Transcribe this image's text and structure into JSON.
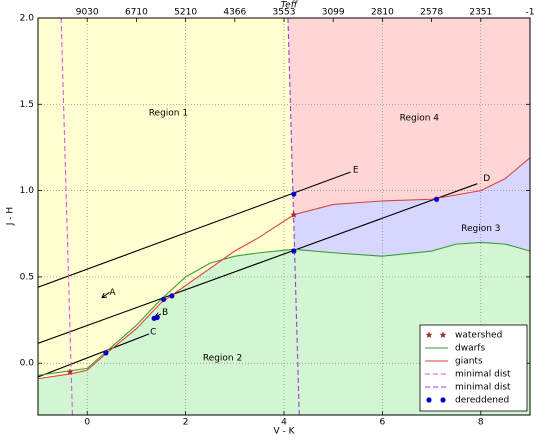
{
  "chart_data": {
    "type": "line",
    "xlabel": "V - K",
    "ylabel": "J - H",
    "x2label": "Teff",
    "xlim": [
      -1,
      9
    ],
    "ylim": [
      -0.3,
      2.0
    ],
    "xticks": [
      0,
      2,
      4,
      6,
      8
    ],
    "yticks": [
      {
        "value": 0,
        "label": "0.0"
      },
      0.5,
      {
        "value": 1,
        "label": "1.0"
      },
      1.5,
      {
        "value": 2,
        "label": "2.0"
      }
    ],
    "x2ticks": [
      {
        "value": 0,
        "label": "9030"
      },
      {
        "value": 1,
        "label": "6710"
      },
      {
        "value": 2,
        "label": "5210"
      },
      {
        "value": 3,
        "label": "4366"
      },
      {
        "value": 4,
        "label": "3553"
      },
      {
        "value": 5,
        "label": "3099"
      },
      {
        "value": 6,
        "label": "2810"
      },
      {
        "value": 7,
        "label": "2578"
      },
      {
        "value": 8,
        "label": "2351"
      },
      {
        "value": 9,
        "label": "-1"
      }
    ],
    "grid": true,
    "legend": "lower right",
    "region_colors": {
      "left": "#ffffd2",
      "right_upper": "#ffd6d6",
      "right_middle": "#d6d6ff",
      "lower": "#d2f5d2"
    },
    "series": [
      {
        "name": "watershed",
        "kind": "scatter",
        "marker": "star",
        "color": "#a52a2a",
        "x": [
          4.2,
          -0.35
        ],
        "values": [
          0.86,
          -0.05
        ]
      },
      {
        "name": "dwarfs",
        "kind": "line",
        "color": "#3a9a3a",
        "x": [
          -1,
          0,
          0.4,
          1,
          1.5,
          2,
          2.5,
          3,
          3.5,
          4.2,
          5,
          6,
          7,
          7.5,
          8,
          8.5,
          9
        ],
        "values": [
          -0.07,
          -0.03,
          0.07,
          0.22,
          0.37,
          0.5,
          0.58,
          0.62,
          0.64,
          0.66,
          0.64,
          0.62,
          0.65,
          0.69,
          0.7,
          0.69,
          0.65
        ]
      },
      {
        "name": "giants",
        "kind": "line",
        "color": "#e04040",
        "x": [
          -1,
          -0.3,
          0,
          0.4,
          1,
          1.5,
          2,
          2.5,
          3,
          3.5,
          4.2,
          5,
          6,
          7,
          8,
          8.5,
          9
        ],
        "values": [
          -0.09,
          -0.06,
          -0.04,
          0.06,
          0.2,
          0.35,
          0.45,
          0.55,
          0.65,
          0.73,
          0.86,
          0.92,
          0.94,
          0.95,
          1.0,
          1.07,
          1.19
        ]
      },
      {
        "name": "minimal dist",
        "kind": "dashed",
        "color": "#dd55dd",
        "x": [
          -0.53,
          -0.3
        ],
        "values": [
          2.0,
          -0.3
        ]
      },
      {
        "name": "minimal dist",
        "kind": "dashed",
        "color": "#9a3fcf",
        "x": [
          4.08,
          4.31
        ],
        "values": [
          2.0,
          -0.3
        ]
      },
      {
        "name": "dereddened",
        "kind": "scatter",
        "marker": "circle",
        "color": "#0000cc",
        "x": [
          4.2,
          4.2,
          7.1,
          1.55,
          1.72,
          0.38,
          1.36,
          1.42
        ],
        "values": [
          0.98,
          0.65,
          0.95,
          0.37,
          0.39,
          0.06,
          0.26,
          0.265
        ]
      }
    ],
    "reddening_lines": [
      {
        "color": "#000000",
        "x": [
          -1,
          5.35
        ],
        "values": [
          0.44,
          1.107
        ]
      },
      {
        "color": "#000000",
        "x": [
          -1,
          7.93
        ],
        "values": [
          0.115,
          1.04
        ]
      },
      {
        "color": "#000000",
        "x": [
          -1,
          1.26
        ],
        "values": [
          -0.08,
          0.17
        ]
      }
    ],
    "arrows": [
      {
        "x": [
          0.45,
          0.3
        ],
        "values": [
          0.41,
          0.38
        ]
      },
      {
        "x": [
          1.5,
          1.38
        ],
        "values": [
          0.285,
          0.27
        ]
      }
    ],
    "annotations": [
      {
        "text": "A",
        "x": 0.45,
        "y": 0.41
      },
      {
        "text": "B",
        "x": 1.52,
        "y": 0.295
      },
      {
        "text": "C",
        "x": 1.28,
        "y": 0.18
      },
      {
        "text": "D",
        "x": 8.05,
        "y": 1.07
      },
      {
        "text": "E",
        "x": 5.4,
        "y": 1.12
      },
      {
        "text": "Region 1",
        "x": 1.25,
        "y": 1.45
      },
      {
        "text": "Region 4",
        "x": 6.35,
        "y": 1.42
      },
      {
        "text": "Region 3",
        "x": 7.6,
        "y": 0.78
      },
      {
        "text": "Region 2",
        "x": 2.35,
        "y": 0.03
      }
    ]
  }
}
